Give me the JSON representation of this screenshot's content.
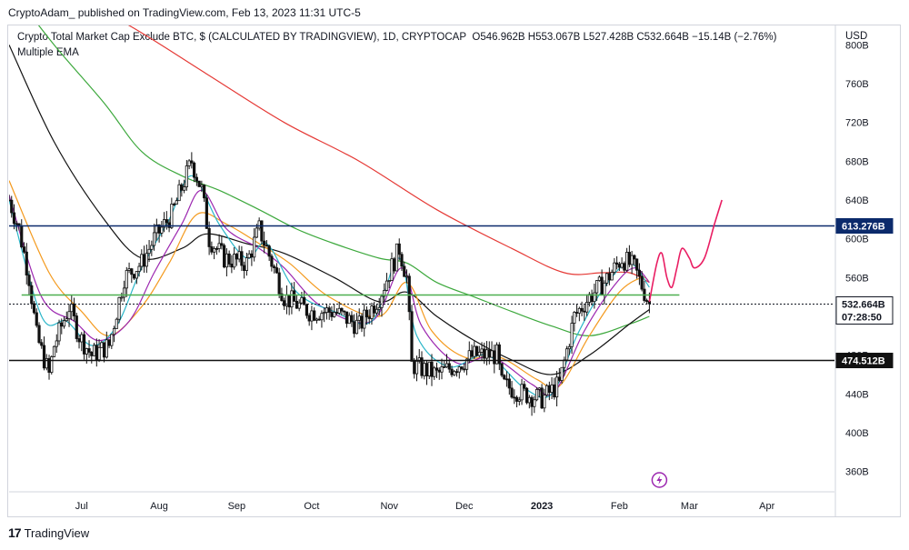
{
  "header": {
    "publisher": "CryptoAdam_ published on TradingView.com, Feb 13, 2023 11:31 UTC-5",
    "legend_title": "Crypto Total Market Cap Exclude BTC, $ (CALCULATED BY TRADINGVIEW), 1D, CRYPTOCAP",
    "ohlc": "O546.962B  H553.067B  L527.428B  C532.664B  −15.14B (−2.76%)",
    "indicator": "Multiple EMA",
    "currency": "USD"
  },
  "footer": {
    "brand": "TradingView",
    "brand_icon": "tradingview-logo-icon"
  },
  "colors": {
    "up": "#111111",
    "down": "#111111",
    "ema1": "#2bb6c9",
    "ema2": "#9c27b0",
    "ema3": "#f49a1e",
    "ema4": "#111111",
    "ema5": "#3ca83c",
    "ema6": "#e53935",
    "resistance": "#0b2a6b",
    "support": "#111111",
    "green_level": "#4caf50",
    "projection": "#e91e63",
    "last_price": "#131722"
  },
  "chart_data": {
    "type": "candlestick",
    "title": "Crypto Total Market Cap Exclude BTC, $ (CALCULATED BY TRADINGVIEW), 1D, CRYPTOCAP",
    "indicator": "Multiple EMA",
    "y_unit": "USD",
    "ylim": [
      340,
      820
    ],
    "x_range": [
      "2022-06-02",
      "2023-04-28"
    ],
    "y_ticks": [
      "360B",
      "400B",
      "440B",
      "480B",
      "520B",
      "560B",
      "600B",
      "640B",
      "680B",
      "720B",
      "760B",
      "800B"
    ],
    "x_ticks": [
      {
        "label": "Jul",
        "date": "2022-07-01"
      },
      {
        "label": "Aug",
        "date": "2022-08-01"
      },
      {
        "label": "Sep",
        "date": "2022-09-01"
      },
      {
        "label": "Oct",
        "date": "2022-10-01"
      },
      {
        "label": "Nov",
        "date": "2022-11-01"
      },
      {
        "label": "Dec",
        "date": "2022-12-01"
      },
      {
        "label": "2023",
        "date": "2023-01-01"
      },
      {
        "label": "Feb",
        "date": "2023-02-01"
      },
      {
        "label": "Mar",
        "date": "2023-03-01"
      },
      {
        "label": "Apr",
        "date": "2023-04-01"
      }
    ],
    "close_path": [
      [
        "2022-06-02",
        640
      ],
      [
        "2022-06-06",
        610
      ],
      [
        "2022-06-10",
        560
      ],
      [
        "2022-06-13",
        500
      ],
      [
        "2022-06-18",
        460
      ],
      [
        "2022-06-20",
        490
      ],
      [
        "2022-06-26",
        530
      ],
      [
        "2022-06-30",
        500
      ],
      [
        "2022-07-05",
        480
      ],
      [
        "2022-07-12",
        490
      ],
      [
        "2022-07-18",
        560
      ],
      [
        "2022-07-25",
        575
      ],
      [
        "2022-07-30",
        600
      ],
      [
        "2022-08-06",
        625
      ],
      [
        "2022-08-14",
        680
      ],
      [
        "2022-08-18",
        650
      ],
      [
        "2022-08-21",
        600
      ],
      [
        "2022-08-27",
        580
      ],
      [
        "2022-09-05",
        575
      ],
      [
        "2022-09-10",
        610
      ],
      [
        "2022-09-13",
        590
      ],
      [
        "2022-09-20",
        540
      ],
      [
        "2022-09-30",
        525
      ],
      [
        "2022-10-10",
        525
      ],
      [
        "2022-10-20",
        510
      ],
      [
        "2022-10-28",
        540
      ],
      [
        "2022-11-05",
        590
      ],
      [
        "2022-11-08",
        560
      ],
      [
        "2022-11-10",
        470
      ],
      [
        "2022-11-20",
        460
      ],
      [
        "2022-11-28",
        470
      ],
      [
        "2022-12-05",
        480
      ],
      [
        "2022-12-14",
        480
      ],
      [
        "2022-12-16",
        450
      ],
      [
        "2022-12-25",
        440
      ],
      [
        "2023-01-01",
        435
      ],
      [
        "2023-01-08",
        450
      ],
      [
        "2023-01-14",
        520
      ],
      [
        "2023-01-20",
        540
      ],
      [
        "2023-01-26",
        555
      ],
      [
        "2023-02-02",
        580
      ],
      [
        "2023-02-07",
        570
      ],
      [
        "2023-02-13",
        532.664
      ]
    ],
    "ema_series": [
      {
        "key": "ema1",
        "points": [
          [
            "2022-06-02",
            640
          ],
          [
            "2022-06-15",
            520
          ],
          [
            "2022-06-25",
            515
          ],
          [
            "2022-07-05",
            490
          ],
          [
            "2022-07-15",
            510
          ],
          [
            "2022-07-25",
            570
          ],
          [
            "2022-08-05",
            620
          ],
          [
            "2022-08-14",
            665
          ],
          [
            "2022-08-25",
            615
          ],
          [
            "2022-09-05",
            580
          ],
          [
            "2022-09-13",
            595
          ],
          [
            "2022-09-25",
            545
          ],
          [
            "2022-10-10",
            525
          ],
          [
            "2022-10-25",
            515
          ],
          [
            "2022-11-05",
            580
          ],
          [
            "2022-11-12",
            500
          ],
          [
            "2022-11-25",
            468
          ],
          [
            "2022-12-10",
            480
          ],
          [
            "2022-12-25",
            446
          ],
          [
            "2023-01-05",
            440
          ],
          [
            "2023-01-15",
            500
          ],
          [
            "2023-01-26",
            550
          ],
          [
            "2023-02-05",
            575
          ],
          [
            "2023-02-13",
            550
          ]
        ]
      },
      {
        "key": "ema2",
        "points": [
          [
            "2022-06-02",
            645
          ],
          [
            "2022-06-15",
            540
          ],
          [
            "2022-06-28",
            515
          ],
          [
            "2022-07-08",
            495
          ],
          [
            "2022-07-20",
            515
          ],
          [
            "2022-07-30",
            565
          ],
          [
            "2022-08-10",
            615
          ],
          [
            "2022-08-18",
            650
          ],
          [
            "2022-08-28",
            610
          ],
          [
            "2022-09-10",
            590
          ],
          [
            "2022-09-20",
            570
          ],
          [
            "2022-10-05",
            530
          ],
          [
            "2022-10-25",
            515
          ],
          [
            "2022-11-06",
            570
          ],
          [
            "2022-11-14",
            510
          ],
          [
            "2022-11-28",
            472
          ],
          [
            "2022-12-12",
            478
          ],
          [
            "2022-12-28",
            450
          ],
          [
            "2023-01-06",
            442
          ],
          [
            "2023-01-18",
            505
          ],
          [
            "2023-01-30",
            552
          ],
          [
            "2023-02-07",
            570
          ],
          [
            "2023-02-13",
            555
          ]
        ]
      },
      {
        "key": "ema3",
        "points": [
          [
            "2022-06-02",
            660
          ],
          [
            "2022-06-18",
            565
          ],
          [
            "2022-07-01",
            525
          ],
          [
            "2022-07-12",
            500
          ],
          [
            "2022-07-25",
            530
          ],
          [
            "2022-08-05",
            575
          ],
          [
            "2022-08-16",
            625
          ],
          [
            "2022-08-28",
            615
          ],
          [
            "2022-09-10",
            595
          ],
          [
            "2022-09-22",
            575
          ],
          [
            "2022-10-08",
            540
          ],
          [
            "2022-10-28",
            520
          ],
          [
            "2022-11-08",
            555
          ],
          [
            "2022-11-18",
            505
          ],
          [
            "2022-12-01",
            478
          ],
          [
            "2022-12-15",
            478
          ],
          [
            "2022-12-30",
            455
          ],
          [
            "2023-01-08",
            448
          ],
          [
            "2023-01-20",
            500
          ],
          [
            "2023-02-01",
            545
          ],
          [
            "2023-02-10",
            560
          ],
          [
            "2023-02-13",
            555
          ]
        ]
      },
      {
        "key": "ema4",
        "points": [
          [
            "2022-06-02",
            800
          ],
          [
            "2022-06-20",
            700
          ],
          [
            "2022-07-10",
            620
          ],
          [
            "2022-07-25",
            580
          ],
          [
            "2022-08-10",
            590
          ],
          [
            "2022-08-20",
            605
          ],
          [
            "2022-09-05",
            595
          ],
          [
            "2022-09-20",
            585
          ],
          [
            "2022-10-10",
            560
          ],
          [
            "2022-10-28",
            535
          ],
          [
            "2022-11-08",
            545
          ],
          [
            "2022-11-20",
            520
          ],
          [
            "2022-12-05",
            495
          ],
          [
            "2022-12-20",
            475
          ],
          [
            "2023-01-05",
            460
          ],
          [
            "2023-01-20",
            480
          ],
          [
            "2023-02-05",
            512
          ],
          [
            "2023-02-13",
            527
          ]
        ]
      },
      {
        "key": "ema5",
        "points": [
          [
            "2022-06-02",
            860
          ],
          [
            "2022-06-20",
            800
          ],
          [
            "2022-07-10",
            740
          ],
          [
            "2022-07-25",
            690
          ],
          [
            "2022-08-10",
            665
          ],
          [
            "2022-08-25",
            650
          ],
          [
            "2022-09-10",
            630
          ],
          [
            "2022-09-25",
            610
          ],
          [
            "2022-10-10",
            595
          ],
          [
            "2022-10-28",
            580
          ],
          [
            "2022-11-08",
            575
          ],
          [
            "2022-11-20",
            555
          ],
          [
            "2022-12-05",
            540
          ],
          [
            "2022-12-20",
            525
          ],
          [
            "2023-01-05",
            510
          ],
          [
            "2023-01-20",
            500
          ],
          [
            "2023-02-05",
            512
          ],
          [
            "2023-02-13",
            520
          ]
        ]
      },
      {
        "key": "ema6",
        "points": [
          [
            "2022-06-20",
            860
          ],
          [
            "2022-07-20",
            820
          ],
          [
            "2022-08-20",
            770
          ],
          [
            "2022-09-20",
            720
          ],
          [
            "2022-10-20",
            680
          ],
          [
            "2022-11-20",
            630
          ],
          [
            "2022-12-20",
            590
          ],
          [
            "2023-01-10",
            565
          ],
          [
            "2023-01-25",
            565
          ],
          [
            "2023-02-05",
            565
          ],
          [
            "2023-02-13",
            555
          ]
        ]
      }
    ],
    "horizontal_levels": [
      {
        "name": "resistance",
        "value": 613.276,
        "label": "613.276B",
        "color_key": "resistance",
        "dashed": false
      },
      {
        "name": "support",
        "value": 474.512,
        "label": "474.512B",
        "color_key": "support",
        "dashed": false
      },
      {
        "name": "green-level",
        "value": 542,
        "color_key": "green_level",
        "dashed": false,
        "from": "2022-06-07",
        "to": "2023-02-25"
      },
      {
        "name": "last-price",
        "value": 532.664,
        "label": "532.664B",
        "sublabel": "07:28:50",
        "color_key": "last_price",
        "dashed": true
      }
    ],
    "projection": {
      "color_key": "projection",
      "points": [
        [
          "2023-02-13",
          535
        ],
        [
          "2023-02-16",
          575
        ],
        [
          "2023-02-18",
          585
        ],
        [
          "2023-02-20",
          560
        ],
        [
          "2023-02-22",
          550
        ],
        [
          "2023-02-24",
          570
        ],
        [
          "2023-02-26",
          590
        ],
        [
          "2023-03-01",
          580
        ],
        [
          "2023-03-03",
          570
        ],
        [
          "2023-03-07",
          580
        ],
        [
          "2023-03-11",
          615
        ],
        [
          "2023-03-14",
          640
        ]
      ]
    },
    "events": [
      {
        "date": "2023-02-17",
        "icon": "lightning-icon"
      }
    ]
  }
}
